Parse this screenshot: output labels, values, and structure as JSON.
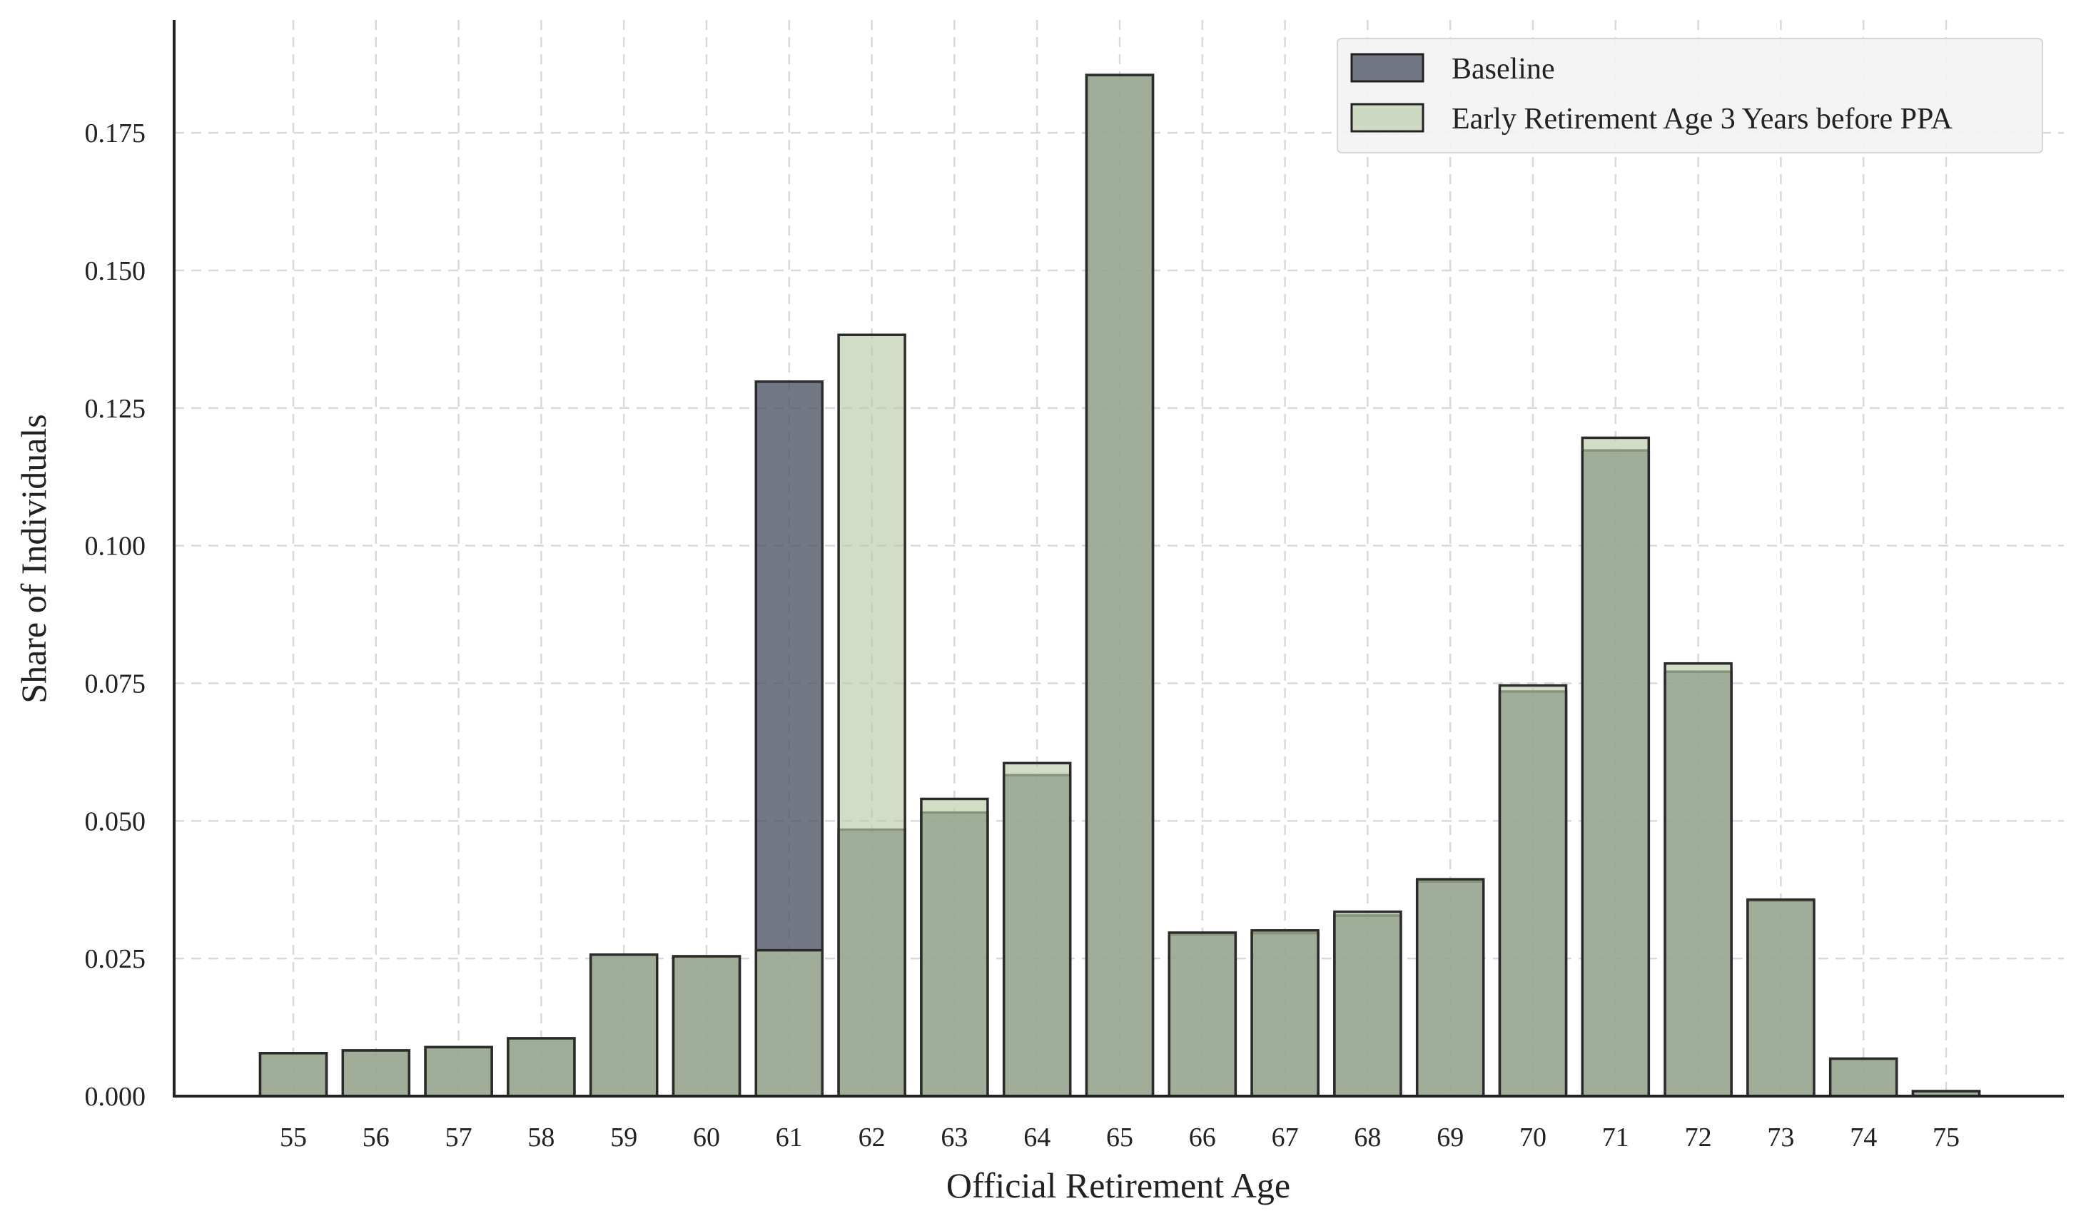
{
  "chart_data": {
    "type": "bar",
    "title": "",
    "xlabel": "Official Retirement Age",
    "ylabel": "Share of Individuals",
    "ylim": [
      0,
      0.1955
    ],
    "yticks": [
      "0.000",
      "0.025",
      "0.050",
      "0.075",
      "0.100",
      "0.125",
      "0.150",
      "0.175"
    ],
    "grid": true,
    "legend_position": "top-right",
    "categories": [
      "55",
      "56",
      "57",
      "58",
      "59",
      "60",
      "61",
      "62",
      "63",
      "64",
      "65",
      "66",
      "67",
      "68",
      "69",
      "70",
      "71",
      "72",
      "73",
      "74",
      "75"
    ],
    "series": [
      {
        "name": "Baseline",
        "color": "#4a5262",
        "values": [
          0.0078,
          0.0083,
          0.0089,
          0.0105,
          0.0257,
          0.0254,
          0.1298,
          0.0484,
          0.0515,
          0.0583,
          0.1855,
          0.0294,
          0.0296,
          0.0328,
          0.039,
          0.0735,
          0.1173,
          0.0771,
          0.0355,
          0.0068,
          0.0009
        ]
      },
      {
        "name": "Early Retirement Age 3 Years before PPA",
        "color": "#b9cba4",
        "values": [
          0.0078,
          0.0083,
          0.0089,
          0.0105,
          0.0257,
          0.0254,
          0.0265,
          0.1383,
          0.054,
          0.0605,
          0.1855,
          0.0297,
          0.0301,
          0.0335,
          0.0394,
          0.0746,
          0.1196,
          0.0786,
          0.0357,
          0.0068,
          0.0009
        ]
      }
    ]
  }
}
